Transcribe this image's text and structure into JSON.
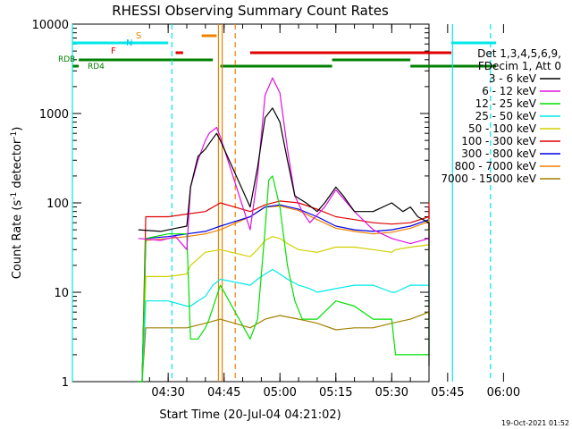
{
  "chart_data": {
    "type": "line",
    "title": "RHESSI Observing Summary Count Rates",
    "xlabel": "Start Time (20-Jul-04 04:21:02)",
    "ylabel_main": "Count Rate (s",
    "ylabel_sup1": "-1",
    "ylabel_mid": " detector",
    "ylabel_sup2": "-1",
    "ylabel_end": ")",
    "yscale": "log",
    "ylim": [
      1,
      10000
    ],
    "xlim_minutes": [
      4.3,
      100
    ],
    "x_ticks": [
      {
        "m": 30,
        "label": "04:30"
      },
      {
        "m": 45,
        "label": "04:45"
      },
      {
        "m": 60,
        "label": "05:00"
      },
      {
        "m": 75,
        "label": "05:15"
      },
      {
        "m": 90,
        "label": "05:30"
      },
      {
        "m": 105,
        "label": "05:45"
      },
      {
        "m": 120,
        "label": "06:00"
      }
    ],
    "y_ticks": [
      {
        "v": 1,
        "label": "1"
      },
      {
        "v": 10,
        "label": "10"
      },
      {
        "v": 100,
        "label": "100"
      },
      {
        "v": 1000,
        "label": "1000"
      },
      {
        "v": 10000,
        "label": "10000"
      }
    ],
    "legend": {
      "placement": "right",
      "header": [
        "Det 1,3,4,5,6,9,",
        "FDecim 1, Att 0"
      ]
    },
    "series": [
      {
        "name": "3 - 6 keV",
        "color": "#000000",
        "x": [
          22,
          28,
          32,
          35,
          36,
          38,
          40,
          41,
          43,
          44,
          52,
          54,
          56,
          58,
          60,
          62,
          64,
          67,
          70,
          72,
          75,
          77,
          80,
          85,
          90,
          93,
          95,
          97,
          100,
          103,
          104,
          105
        ],
        "y": [
          50,
          48,
          52,
          55,
          150,
          330,
          400,
          460,
          600,
          500,
          90,
          250,
          900,
          1150,
          800,
          300,
          120,
          100,
          80,
          100,
          150,
          120,
          80,
          80,
          100,
          80,
          90,
          70,
          60,
          40,
          1.5,
          3
        ]
      },
      {
        "name": "6 - 12 keV",
        "color": "#e010e0",
        "x": [
          22,
          28,
          32,
          35,
          36,
          38,
          40,
          41,
          43,
          44,
          52,
          54,
          56,
          58,
          60,
          62,
          64,
          66,
          68,
          72,
          75,
          80,
          85,
          90,
          95,
          100,
          103,
          104,
          105
        ],
        "y": [
          40,
          38,
          42,
          30,
          150,
          300,
          500,
          600,
          700,
          550,
          50,
          200,
          1600,
          2500,
          1700,
          400,
          120,
          80,
          60,
          90,
          140,
          80,
          50,
          40,
          35,
          40,
          30,
          40,
          45
        ]
      },
      {
        "name": "12 - 25 keV",
        "color": "#00e000",
        "x": [
          22,
          23,
          24,
          30,
          35,
          36,
          38,
          40,
          41,
          44,
          52,
          54,
          56,
          57,
          58,
          60,
          62,
          64,
          66,
          70,
          75,
          80,
          85,
          90,
          91,
          95,
          100,
          104,
          105,
          108,
          110
        ],
        "y": [
          1,
          1,
          40,
          45,
          45,
          3,
          3,
          4,
          5,
          12,
          3,
          5,
          50,
          180,
          200,
          90,
          20,
          8,
          5,
          5,
          8,
          7,
          5,
          5,
          2,
          2,
          2,
          2,
          6,
          2,
          2
        ]
      },
      {
        "name": "25 - 50 keV",
        "color": "#00e8e8",
        "x": [
          22,
          23,
          24,
          26,
          30,
          35,
          36,
          38,
          40,
          42,
          44,
          52,
          54,
          56,
          58,
          60,
          62,
          65,
          68,
          70,
          75,
          80,
          85,
          90,
          91,
          95,
          100,
          104,
          105,
          110,
          115,
          118
        ],
        "y": [
          1,
          1,
          8,
          8,
          8,
          7,
          7,
          8,
          9,
          12,
          14,
          12,
          14,
          16,
          18,
          16,
          14,
          12,
          11,
          10,
          11,
          12,
          12,
          10,
          10,
          12,
          12,
          13,
          18,
          25,
          12,
          7
        ]
      },
      {
        "name": "50 - 100 keV",
        "color": "#d0d000",
        "x": [
          22,
          23,
          24,
          30,
          35,
          36,
          40,
          44,
          52,
          54,
          56,
          58,
          60,
          62,
          65,
          70,
          75,
          80,
          85,
          90,
          91,
          95,
          100,
          104,
          105,
          108,
          111,
          115,
          118
        ],
        "y": [
          1,
          1,
          15,
          15,
          16,
          20,
          28,
          30,
          25,
          30,
          38,
          42,
          40,
          35,
          30,
          28,
          32,
          32,
          30,
          28,
          30,
          32,
          34,
          36,
          55,
          65,
          45,
          28,
          20
        ]
      },
      {
        "name": "100 - 300 keV",
        "color": "#e00000",
        "x": [
          22,
          23,
          24,
          30,
          35,
          40,
          44,
          52,
          56,
          60,
          65,
          70,
          75,
          80,
          85,
          90,
          95,
          100,
          105,
          110,
          115,
          118
        ],
        "y": [
          1,
          1,
          70,
          70,
          75,
          80,
          100,
          80,
          95,
          105,
          100,
          85,
          70,
          65,
          60,
          58,
          60,
          70,
          90,
          100,
          80,
          50
        ]
      },
      {
        "name": "300 - 800 keV",
        "color": "#0000e0",
        "x": [
          22,
          23,
          24,
          30,
          35,
          40,
          44,
          52,
          56,
          60,
          65,
          70,
          75,
          80,
          85,
          90,
          95,
          100,
          105,
          110,
          115,
          118
        ],
        "y": [
          1,
          1,
          40,
          42,
          45,
          48,
          55,
          70,
          90,
          95,
          85,
          70,
          55,
          50,
          48,
          50,
          55,
          65,
          80,
          90,
          75,
          50
        ]
      },
      {
        "name": "800 - 7000 keV",
        "color": "#f08000",
        "x": [
          22,
          23,
          24,
          30,
          35,
          40,
          44,
          52,
          56,
          60,
          65,
          70,
          75,
          80,
          85,
          90,
          95,
          100,
          105,
          110,
          115,
          118
        ],
        "y": [
          1,
          1,
          38,
          40,
          42,
          45,
          50,
          70,
          90,
          92,
          82,
          65,
          52,
          48,
          45,
          47,
          52,
          62,
          78,
          88,
          72,
          48
        ]
      },
      {
        "name": "7000 - 15000 keV",
        "color": "#a08000",
        "x": [
          22,
          23,
          24,
          30,
          35,
          40,
          44,
          52,
          56,
          60,
          65,
          70,
          75,
          80,
          85,
          90,
          95,
          100,
          105,
          110,
          115,
          118
        ],
        "y": [
          1,
          1,
          4,
          4,
          4,
          4.5,
          5,
          4,
          5,
          5.5,
          5,
          4.5,
          3.8,
          4,
          4,
          4.5,
          5,
          6,
          7.5,
          9,
          7,
          5
        ]
      }
    ],
    "annotations": {
      "date_stamp": "19-Oct-2021 01:52",
      "flag_rdb": "RDB",
      "flag_rd4": "RD4",
      "flag_f": "F",
      "flag_n": "N",
      "flag_s": "S"
    }
  }
}
